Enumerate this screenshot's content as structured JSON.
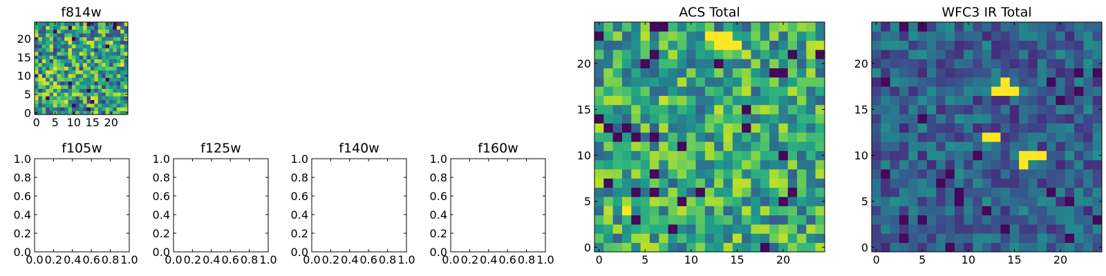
{
  "chart_data": [
    {
      "type": "heatmap",
      "title": "f814w",
      "xlim": [
        -0.5,
        24.5
      ],
      "ylim": [
        -0.5,
        24.5
      ],
      "xticks": [
        "0",
        "5",
        "10",
        "15",
        "20"
      ],
      "yticks": [
        "0",
        "5",
        "10",
        "15",
        "20"
      ],
      "colormap": "viridis",
      "grid": false,
      "legend": "none",
      "values_note": "25x25 pixel intensity map",
      "seed": 11
    },
    {
      "type": "empty",
      "title": "f105w",
      "xlim": [
        0,
        1
      ],
      "ylim": [
        0,
        1
      ],
      "xticks": [
        "0.0",
        "0.2",
        "0.4",
        "0.6",
        "0.8",
        "1.0"
      ],
      "yticks": [
        "0.0",
        "0.2",
        "0.4",
        "0.6",
        "0.8",
        "1.0"
      ]
    },
    {
      "type": "empty",
      "title": "f125w",
      "xlim": [
        0,
        1
      ],
      "ylim": [
        0,
        1
      ],
      "xticks": [
        "0.0",
        "0.2",
        "0.4",
        "0.6",
        "0.8",
        "1.0"
      ],
      "yticks": [
        "0.0",
        "0.2",
        "0.4",
        "0.6",
        "0.8",
        "1.0"
      ]
    },
    {
      "type": "empty",
      "title": "f140w",
      "xlim": [
        0,
        1
      ],
      "ylim": [
        0,
        1
      ],
      "xticks": [
        "0.0",
        "0.2",
        "0.4",
        "0.6",
        "0.8",
        "1.0"
      ],
      "yticks": [
        "0.0",
        "0.2",
        "0.4",
        "0.6",
        "0.8",
        "1.0"
      ]
    },
    {
      "type": "empty",
      "title": "f160w",
      "xlim": [
        0,
        1
      ],
      "ylim": [
        0,
        1
      ],
      "xticks": [
        "0.0",
        "0.2",
        "0.4",
        "0.6",
        "0.8",
        "1.0"
      ],
      "yticks": [
        "0.0",
        "0.2",
        "0.4",
        "0.6",
        "0.8",
        "1.0"
      ]
    },
    {
      "type": "heatmap",
      "title": "ACS Total",
      "xlim": [
        -0.5,
        24.5
      ],
      "ylim": [
        -0.5,
        24.5
      ],
      "xticks": [
        "0",
        "5",
        "10",
        "15",
        "20"
      ],
      "yticks": [
        "0",
        "5",
        "10",
        "15",
        "20"
      ],
      "colormap": "viridis",
      "grid": false,
      "legend": "none",
      "bright_pixels": [
        [
          12,
          23
        ],
        [
          13,
          23
        ],
        [
          14,
          23
        ],
        [
          13,
          22
        ],
        [
          14,
          22
        ],
        [
          15,
          22
        ],
        [
          3,
          4
        ]
      ],
      "seed": 29
    },
    {
      "type": "heatmap",
      "title": "WFC3 IR Total",
      "xlim": [
        -0.5,
        24.5
      ],
      "ylim": [
        -0.5,
        24.5
      ],
      "xticks": [
        "0",
        "5",
        "10",
        "15",
        "20"
      ],
      "yticks": [
        "0",
        "5",
        "10",
        "15",
        "20"
      ],
      "colormap": "viridis",
      "grid": false,
      "legend": "none",
      "bright_pixels": [
        [
          14,
          18
        ],
        [
          13,
          17
        ],
        [
          14,
          17
        ],
        [
          15,
          17
        ],
        [
          12,
          12
        ],
        [
          13,
          12
        ],
        [
          16,
          10
        ],
        [
          17,
          10
        ],
        [
          18,
          10
        ],
        [
          16,
          9
        ]
      ],
      "seed": 47
    }
  ]
}
